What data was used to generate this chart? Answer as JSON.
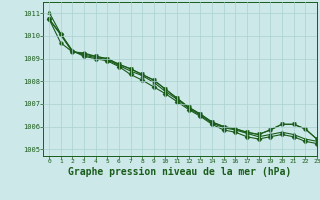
{
  "background_color": "#cce8e8",
  "grid_color": "#aad0d0",
  "line_color": "#1a5c1a",
  "marker_color": "#1a5c1a",
  "xlabel": "Graphe pression niveau de la mer (hPa)",
  "xlabel_fontsize": 7,
  "xlim": [
    -0.5,
    23
  ],
  "ylim": [
    1004.7,
    1011.5
  ],
  "yticks": [
    1005,
    1006,
    1007,
    1008,
    1009,
    1010,
    1011
  ],
  "xticks": [
    0,
    1,
    2,
    3,
    4,
    5,
    6,
    7,
    8,
    9,
    10,
    11,
    12,
    13,
    14,
    15,
    16,
    17,
    18,
    19,
    20,
    21,
    22,
    23
  ],
  "series": [
    [
      1010.75,
      1010.1,
      1009.35,
      1009.1,
      1009.0,
      1008.9,
      1008.65,
      1008.3,
      1008.05,
      1007.75,
      1007.45,
      1007.1,
      1006.75,
      1006.45,
      1006.1,
      1005.85,
      1005.75,
      1005.55,
      1005.45,
      1005.55,
      1005.65,
      1005.55,
      1005.35,
      1005.25
    ],
    [
      1011.05,
      1010.1,
      1009.35,
      1009.15,
      1009.05,
      1008.95,
      1008.7,
      1008.45,
      1008.25,
      1007.95,
      1007.55,
      1007.2,
      1006.8,
      1006.5,
      1006.15,
      1005.95,
      1005.85,
      1005.7,
      1005.55,
      1005.65,
      1005.75,
      1005.65,
      1005.45,
      1005.35
    ],
    [
      1010.75,
      1010.05,
      1009.3,
      1009.2,
      1009.1,
      1009.0,
      1008.75,
      1008.55,
      1008.3,
      1008.05,
      1007.65,
      1007.25,
      1006.85,
      1006.55,
      1006.2,
      1006.0,
      1005.9,
      1005.75,
      1005.65,
      1005.85,
      1006.1,
      1006.1,
      1005.9,
      1005.45
    ],
    [
      1010.75,
      1009.7,
      1009.3,
      1009.25,
      1009.1,
      1009.0,
      1008.75,
      1008.55,
      1008.3,
      1008.05,
      1007.65,
      1007.25,
      1006.85,
      1006.55,
      1006.2,
      1006.0,
      1005.9,
      1005.75,
      1005.65,
      1005.85,
      1006.1,
      1006.1,
      1005.9,
      1005.45
    ]
  ],
  "markers": [
    "D",
    "^",
    "v",
    "o"
  ],
  "marker_sizes": [
    2.5,
    2.5,
    2.5,
    2.5
  ],
  "linewidths": [
    0.8,
    0.8,
    0.8,
    0.8
  ]
}
